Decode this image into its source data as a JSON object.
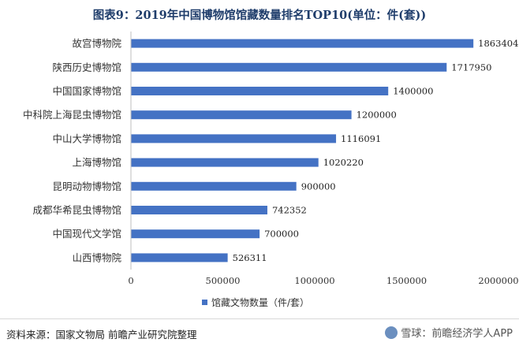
{
  "chart_data": {
    "type": "bar",
    "orientation": "horizontal",
    "title": "图表9：2019年中国博物馆馆藏数量排名TOP10(单位：件(套))",
    "categories": [
      "故宫博物院",
      "陕西历史博物馆",
      "中国国家博物馆",
      "中科院上海昆虫博物馆",
      "中山大学博物馆",
      "上海博物馆",
      "昆明动物博物馆",
      "成都华希昆虫博物馆",
      "中国现代文学馆",
      "山西博物院"
    ],
    "values": [
      1863404,
      1717950,
      1400000,
      1200000,
      1116091,
      1020220,
      900000,
      742352,
      700000,
      526311
    ],
    "series": [
      {
        "name": "馆藏文物数量（件/套）",
        "values": [
          1863404,
          1717950,
          1400000,
          1200000,
          1116091,
          1020220,
          900000,
          742352,
          700000,
          526311
        ]
      }
    ],
    "xlim": [
      0,
      2000000
    ],
    "xticks": [
      0,
      500000,
      1000000,
      1500000,
      2000000
    ],
    "xlabel": "",
    "ylabel": "",
    "grid": false,
    "legend_position": "bottom-center",
    "bar_color": "#4472c4",
    "data_labels": true
  },
  "footer": {
    "source": "资料来源：国家文物局 前瞻产业研究院整理",
    "watermark": "雪球：前瞻经济学人APP"
  }
}
